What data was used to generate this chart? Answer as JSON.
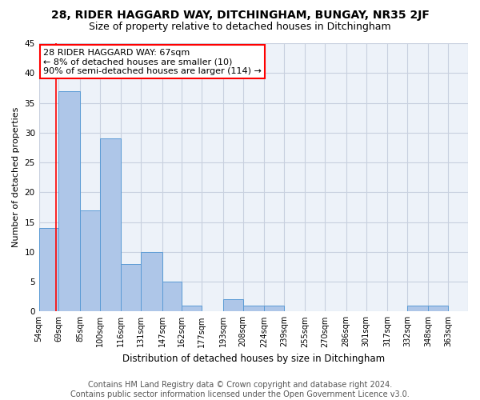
{
  "title": "28, RIDER HAGGARD WAY, DITCHINGHAM, BUNGAY, NR35 2JF",
  "subtitle": "Size of property relative to detached houses in Ditchingham",
  "xlabel": "Distribution of detached houses by size in Ditchingham",
  "ylabel": "Number of detached properties",
  "bar_values": [
    14,
    37,
    17,
    29,
    8,
    10,
    5,
    1,
    0,
    2,
    1,
    1,
    0,
    0,
    0,
    0,
    0,
    0,
    1,
    1
  ],
  "bin_labels": [
    "54sqm",
    "69sqm",
    "85sqm",
    "100sqm",
    "116sqm",
    "131sqm",
    "147sqm",
    "162sqm",
    "177sqm",
    "193sqm",
    "208sqm",
    "224sqm",
    "239sqm",
    "255sqm",
    "270sqm",
    "286sqm",
    "301sqm",
    "317sqm",
    "332sqm",
    "348sqm",
    "363sqm"
  ],
  "bar_color": "#aec6e8",
  "bar_edge_color": "#5b9bd5",
  "grid_color": "#c8d0df",
  "background_color": "#edf2f9",
  "annotation_box_color": "white",
  "annotation_box_edge_color": "red",
  "annotation_line_color": "red",
  "annotation_text": "28 RIDER HAGGARD WAY: 67sqm\n← 8% of detached houses are smaller (10)\n90% of semi-detached houses are larger (114) →",
  "property_line_x": 67,
  "bin_edges": [
    54,
    69,
    85,
    100,
    116,
    131,
    147,
    162,
    177,
    193,
    208,
    224,
    239,
    255,
    270,
    286,
    301,
    317,
    332,
    348,
    363
  ],
  "bin_width": 15,
  "ylim": [
    0,
    45
  ],
  "yticks": [
    0,
    5,
    10,
    15,
    20,
    25,
    30,
    35,
    40,
    45
  ],
  "footer_text": "Contains HM Land Registry data © Crown copyright and database right 2024.\nContains public sector information licensed under the Open Government Licence v3.0.",
  "title_fontsize": 10,
  "subtitle_fontsize": 9,
  "annotation_fontsize": 8,
  "footer_fontsize": 7,
  "ylabel_fontsize": 8,
  "xlabel_fontsize": 8.5
}
